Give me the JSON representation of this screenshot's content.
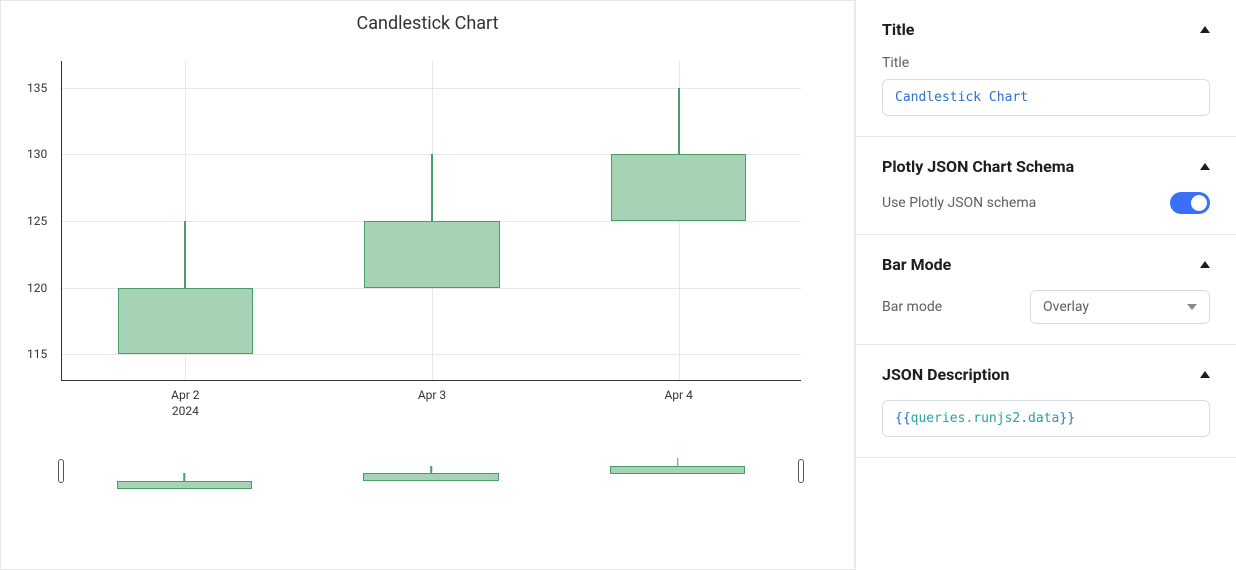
{
  "chart": {
    "title": "Candlestick Chart",
    "background_color": "#ffffff",
    "grid_color": "#e8e8e8",
    "axis_color": "#333333",
    "candle_fill": "#a7d3b5",
    "candle_border": "#4a9d6a",
    "y_axis": {
      "min": 113,
      "max": 137,
      "ticks": [
        115,
        120,
        125,
        130,
        135
      ]
    },
    "x_axis": {
      "labels": [
        "Apr 2",
        "Apr 3",
        "Apr 4"
      ],
      "year": "2024"
    },
    "candles": [
      {
        "date": "Apr 2",
        "open": 115,
        "close": 120,
        "low": 115,
        "high": 125
      },
      {
        "date": "Apr 3",
        "open": 120,
        "close": 125,
        "low": 120,
        "high": 130
      },
      {
        "date": "Apr 4",
        "open": 125,
        "close": 130,
        "low": 125,
        "high": 135
      }
    ]
  },
  "panel": {
    "title_section": {
      "header": "Title",
      "field_label": "Title",
      "value": "Candlestick Chart"
    },
    "schema_section": {
      "header": "Plotly JSON Chart Schema",
      "toggle_label": "Use Plotly JSON schema",
      "toggle_on": true
    },
    "barmode_section": {
      "header": "Bar Mode",
      "field_label": "Bar mode",
      "selected": "Overlay"
    },
    "jsondesc_section": {
      "header": "JSON Description",
      "value_prefix": "{{",
      "value_mid": "queries.runjs2.data",
      "value_suffix": "}}"
    }
  }
}
